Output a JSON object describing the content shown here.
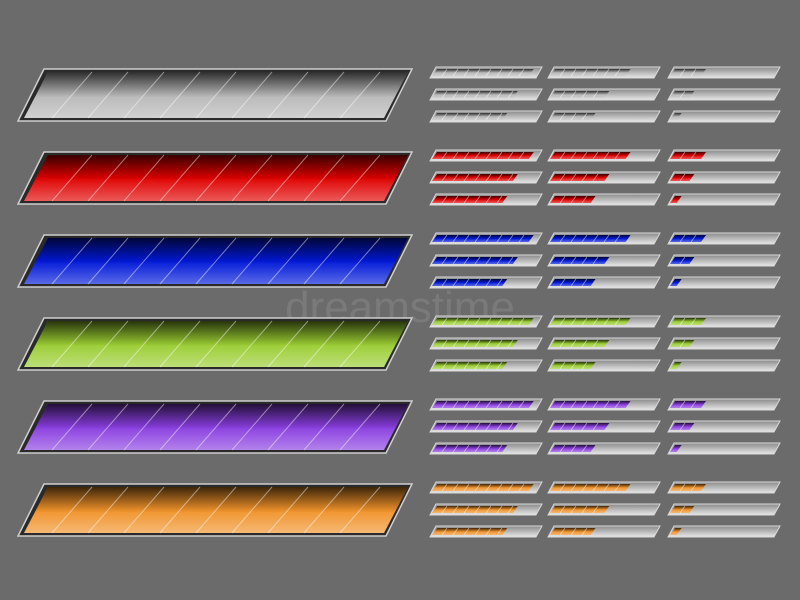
{
  "watermark": "dreamstime",
  "bar_colors": [
    "#b8b8b8",
    "#e00000",
    "#0018d8",
    "#9acd32",
    "#8a3ee0",
    "#f0922a"
  ],
  "levels": [
    [
      95,
      80,
      70
    ],
    [
      75,
      55,
      42
    ],
    [
      33,
      22,
      10
    ]
  ]
}
